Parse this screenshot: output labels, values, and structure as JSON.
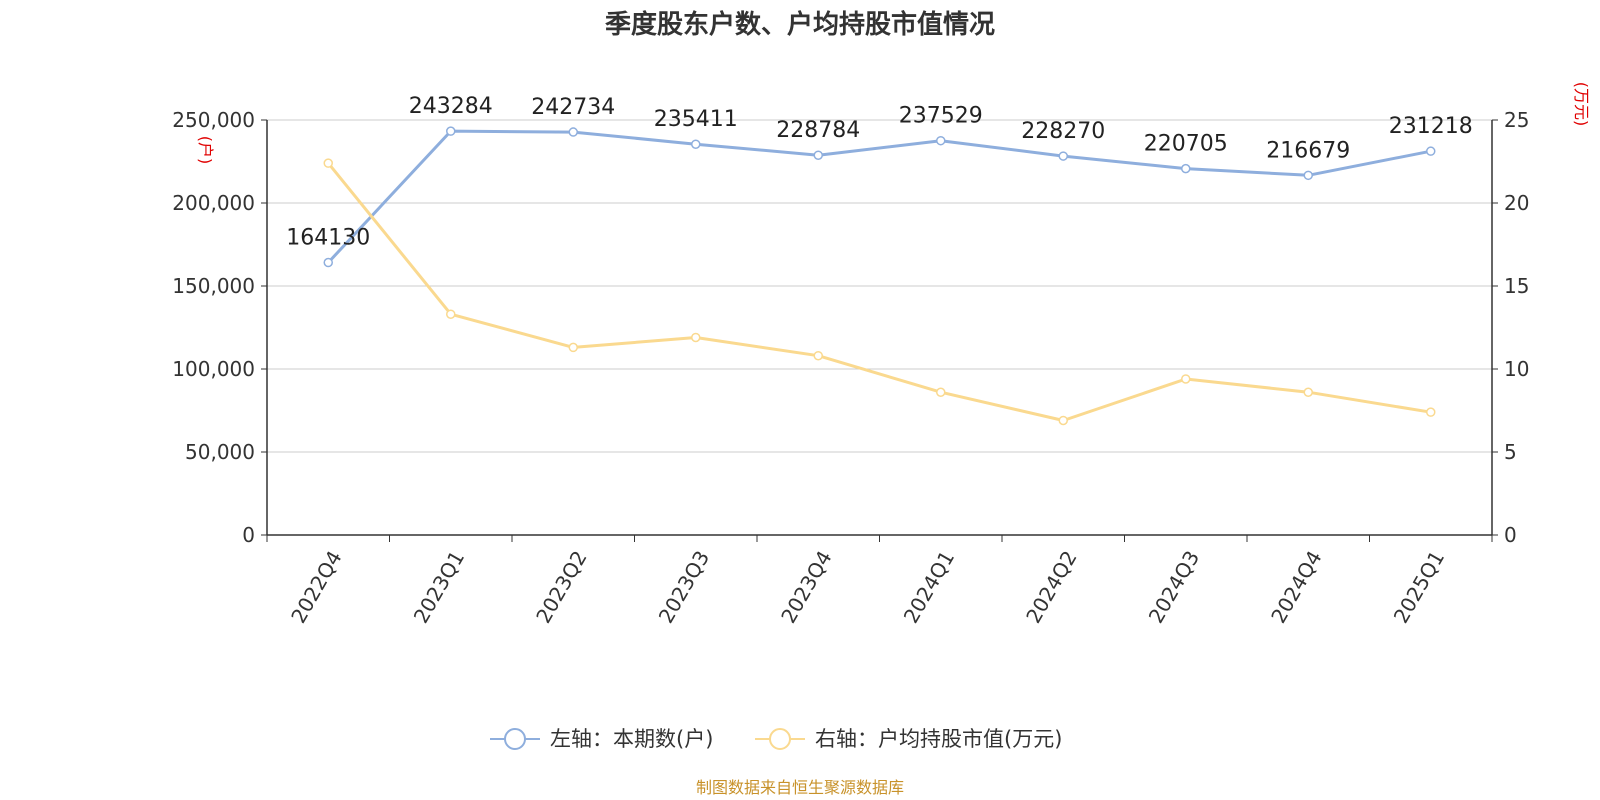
{
  "title": "季度股东户数、户均持股市值情况",
  "source": "制图数据来自恒生聚源数据库",
  "colors": {
    "left_series": "#8eaedd",
    "right_series": "#fad98f",
    "unit": "#e00000",
    "grid": "#cccccc",
    "axis": "#333333"
  },
  "chart_data": {
    "type": "line",
    "title": "季度股东户数、户均持股市值情况",
    "categories": [
      "2022Q4",
      "2023Q1",
      "2023Q2",
      "2023Q3",
      "2023Q4",
      "2024Q1",
      "2024Q2",
      "2024Q3",
      "2024Q4",
      "2025Q1"
    ],
    "left_axis": {
      "unit_label": "(户)",
      "ylim": [
        0,
        250000
      ],
      "ticks": [
        "0",
        "50,000",
        "100,000",
        "150,000",
        "200,000",
        "250,000"
      ]
    },
    "right_axis": {
      "unit_label": "(万元)",
      "ylim": [
        0,
        25
      ],
      "ticks": [
        "0",
        "5",
        "10",
        "15",
        "20",
        "25"
      ]
    },
    "series": [
      {
        "name": "左轴：本期数(户)",
        "axis": "left",
        "color": "#8eaedd",
        "values": [
          164130,
          243284,
          242734,
          235411,
          228784,
          237529,
          228270,
          220705,
          216679,
          231218
        ],
        "data_labels": [
          "164130",
          "243284",
          "242734",
          "235411",
          "228784",
          "237529",
          "228270",
          "220705",
          "216679",
          "231218"
        ]
      },
      {
        "name": "右轴：户均持股市值(万元)",
        "axis": "right",
        "color": "#fad98f",
        "values": [
          22.4,
          13.3,
          11.3,
          11.9,
          10.8,
          8.6,
          6.9,
          9.4,
          8.6,
          7.4
        ]
      }
    ],
    "grid": true,
    "legend_position": "bottom-center"
  }
}
